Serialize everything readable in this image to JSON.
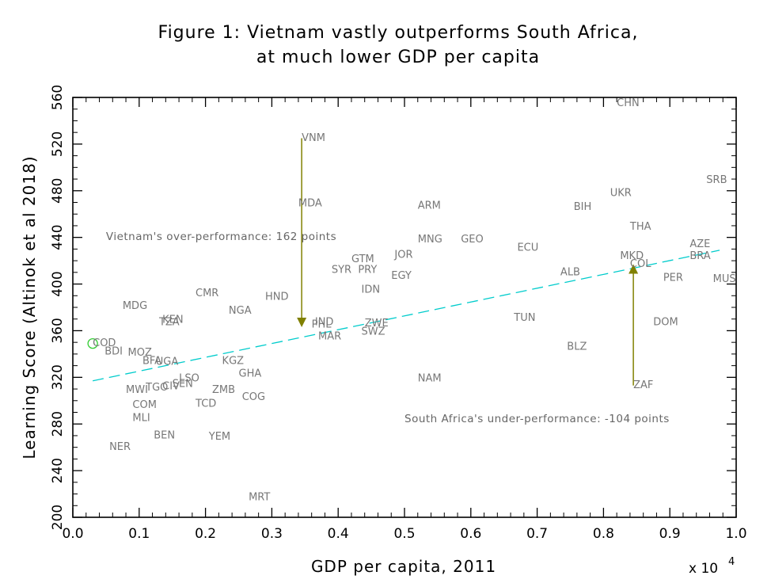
{
  "chart_data": {
    "type": "scatter",
    "title_line1": "Figure 1:  Vietnam vastly outperforms South Africa,",
    "title_line2": "at much lower GDP per capita",
    "xlabel": "GDP per capita, 2011",
    "xscale_label": "x 10",
    "xscale_exponent": "4",
    "ylabel": "Learning Score (Altinok et al 2018)",
    "xlim": [
      0,
      1.0
    ],
    "ylim": [
      200,
      560
    ],
    "xticks": [
      "0.0",
      "0.1",
      "0.2",
      "0.3",
      "0.4",
      "0.5",
      "0.6",
      "0.7",
      "0.8",
      "0.9",
      "1.0"
    ],
    "yticks": [
      "200",
      "240",
      "280",
      "320",
      "360",
      "400",
      "440",
      "480",
      "520",
      "560"
    ],
    "points": [
      {
        "label": "CHN",
        "x": 0.82,
        "y": 556
      },
      {
        "label": "VNM",
        "x": 0.345,
        "y": 526
      },
      {
        "label": "SRB",
        "x": 0.955,
        "y": 490
      },
      {
        "label": "UKR",
        "x": 0.81,
        "y": 479
      },
      {
        "label": "MDA",
        "x": 0.34,
        "y": 470
      },
      {
        "label": "ARM",
        "x": 0.52,
        "y": 468
      },
      {
        "label": "BIH",
        "x": 0.755,
        "y": 467
      },
      {
        "label": "THA",
        "x": 0.84,
        "y": 450
      },
      {
        "label": "MNG",
        "x": 0.52,
        "y": 439
      },
      {
        "label": "GEO",
        "x": 0.585,
        "y": 439
      },
      {
        "label": "AZE",
        "x": 0.93,
        "y": 435
      },
      {
        "label": "ECU",
        "x": 0.67,
        "y": 432
      },
      {
        "label": "JOR",
        "x": 0.485,
        "y": 426
      },
      {
        "label": "MKD",
        "x": 0.825,
        "y": 425
      },
      {
        "label": "BRA",
        "x": 0.93,
        "y": 425
      },
      {
        "label": "GTM",
        "x": 0.42,
        "y": 422
      },
      {
        "label": "COL",
        "x": 0.84,
        "y": 418
      },
      {
        "label": "SYR",
        "x": 0.39,
        "y": 413
      },
      {
        "label": "PRY",
        "x": 0.43,
        "y": 413
      },
      {
        "label": "ALB",
        "x": 0.735,
        "y": 411
      },
      {
        "label": "EGY",
        "x": 0.48,
        "y": 408
      },
      {
        "label": "PER",
        "x": 0.89,
        "y": 406
      },
      {
        "label": "MUS",
        "x": 0.965,
        "y": 405
      },
      {
        "label": "IDN",
        "x": 0.435,
        "y": 396
      },
      {
        "label": "CMR",
        "x": 0.185,
        "y": 393
      },
      {
        "label": "HND",
        "x": 0.29,
        "y": 390
      },
      {
        "label": "MDG",
        "x": 0.075,
        "y": 382
      },
      {
        "label": "NGA",
        "x": 0.235,
        "y": 378
      },
      {
        "label": "TUN",
        "x": 0.665,
        "y": 372
      },
      {
        "label": "KEN",
        "x": 0.135,
        "y": 370
      },
      {
        "label": "TZA",
        "x": 0.13,
        "y": 368
      },
      {
        "label": "IND",
        "x": 0.365,
        "y": 368
      },
      {
        "label": "PHL",
        "x": 0.36,
        "y": 366
      },
      {
        "label": "ZWE",
        "x": 0.44,
        "y": 367
      },
      {
        "label": "DOM",
        "x": 0.875,
        "y": 368
      },
      {
        "label": "SWZ",
        "x": 0.435,
        "y": 360
      },
      {
        "label": "MAR",
        "x": 0.37,
        "y": 356
      },
      {
        "label": "COD",
        "x": 0.03,
        "y": 350
      },
      {
        "label": "BLZ",
        "x": 0.745,
        "y": 347
      },
      {
        "label": "BDI",
        "x": 0.048,
        "y": 343
      },
      {
        "label": "MOZ",
        "x": 0.083,
        "y": 342
      },
      {
        "label": "BFA",
        "x": 0.105,
        "y": 335
      },
      {
        "label": "UGA",
        "x": 0.125,
        "y": 334
      },
      {
        "label": "KGZ",
        "x": 0.225,
        "y": 335
      },
      {
        "label": "GHA",
        "x": 0.25,
        "y": 324
      },
      {
        "label": "ZAF",
        "x": 0.845,
        "y": 314
      },
      {
        "label": "NAM",
        "x": 0.52,
        "y": 320
      },
      {
        "label": "LSO",
        "x": 0.16,
        "y": 320
      },
      {
        "label": "SEN",
        "x": 0.15,
        "y": 315
      },
      {
        "label": "CIV",
        "x": 0.135,
        "y": 313
      },
      {
        "label": "TGO",
        "x": 0.11,
        "y": 312
      },
      {
        "label": "MWI",
        "x": 0.08,
        "y": 310
      },
      {
        "label": "ZMB",
        "x": 0.21,
        "y": 310
      },
      {
        "label": "COG",
        "x": 0.255,
        "y": 304
      },
      {
        "label": "COM",
        "x": 0.09,
        "y": 297
      },
      {
        "label": "TCD",
        "x": 0.185,
        "y": 298
      },
      {
        "label": "MLI",
        "x": 0.09,
        "y": 286
      },
      {
        "label": "BEN",
        "x": 0.122,
        "y": 271
      },
      {
        "label": "YEM",
        "x": 0.205,
        "y": 270
      },
      {
        "label": "NER",
        "x": 0.055,
        "y": 261
      },
      {
        "label": "MRT",
        "x": 0.265,
        "y": 218
      }
    ],
    "highlight_point": {
      "x": 0.03,
      "y": 349,
      "color": "#33cc33"
    },
    "trend_line": {
      "x": [
        0.03,
        0.975
      ],
      "y": [
        317,
        429
      ],
      "color": "#00cccc",
      "style": "dashed"
    },
    "arrows": [
      {
        "x": 0.345,
        "y_from": 525,
        "y_to": 363,
        "color": "#808000",
        "direction": "down"
      },
      {
        "x": 0.845,
        "y_from": 313,
        "y_to": 417,
        "color": "#808000",
        "direction": "up"
      }
    ],
    "annotations": [
      {
        "text": "Vietnam's over-performance: 162 points",
        "x": 0.05,
        "y": 441
      },
      {
        "text": "South Africa's under-performance: -104 points",
        "x": 0.5,
        "y": 285
      }
    ]
  }
}
